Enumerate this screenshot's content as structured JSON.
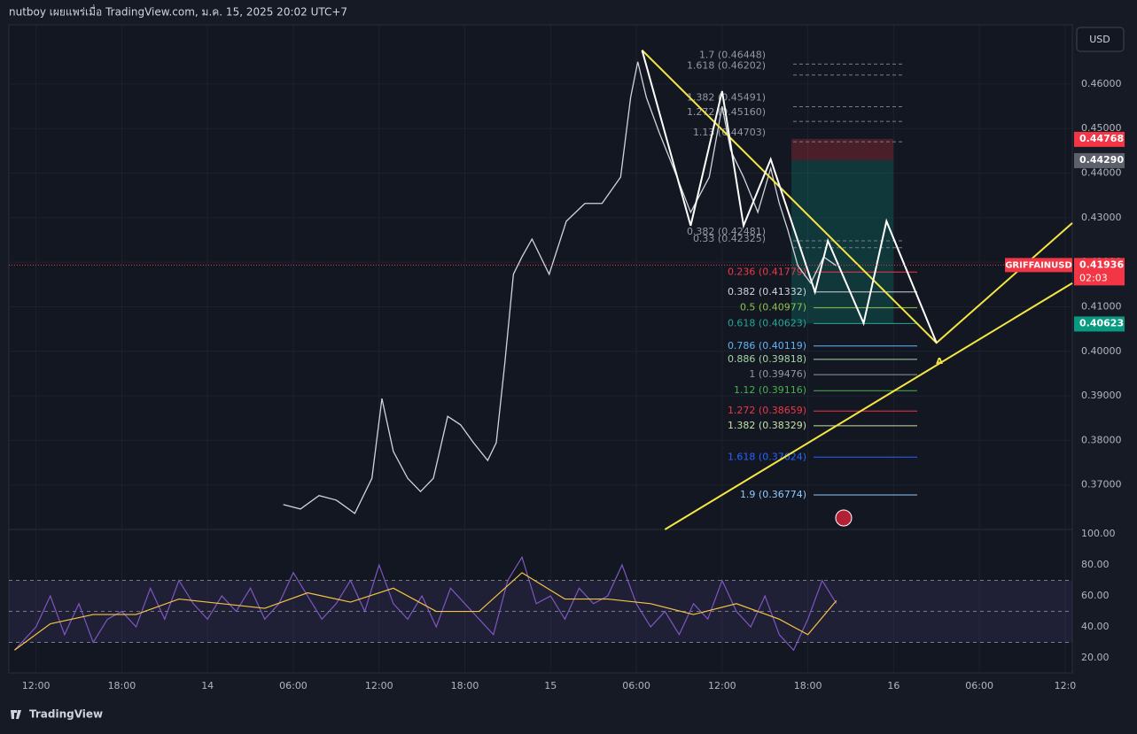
{
  "header": {
    "text": "nutboy เผยแพร่เมื่อ TradingView.com, ม.ค. 15, 2025 20:02 UTC+7"
  },
  "currency_button": "USD",
  "footer": "TradingView",
  "chart_data": [
    {
      "type": "line",
      "xlim": [
        -1.9,
        72.5
      ],
      "xticks": [
        {
          "value": 0,
          "label": "12:00"
        },
        {
          "value": 6,
          "label": "18:00"
        },
        {
          "value": 12,
          "label": "14"
        },
        {
          "value": 18,
          "label": "06:00"
        },
        {
          "value": 24,
          "label": "12:00"
        },
        {
          "value": 30,
          "label": "18:00"
        },
        {
          "value": 36,
          "label": "15"
        },
        {
          "value": 42,
          "label": "06:00"
        },
        {
          "value": 48,
          "label": "12:00"
        },
        {
          "value": 54,
          "label": "18:00"
        },
        {
          "value": 60,
          "label": "16"
        },
        {
          "value": 66,
          "label": "06:00"
        },
        {
          "value": 72,
          "label": "12:0"
        }
      ],
      "ylim": [
        0.36,
        0.4733
      ],
      "yticks": [
        {
          "value": 0.37,
          "label": "0.37000"
        },
        {
          "value": 0.38,
          "label": "0.38000"
        },
        {
          "value": 0.39,
          "label": "0.39000"
        },
        {
          "value": 0.4,
          "label": "0.40000"
        },
        {
          "value": 0.41,
          "label": "0.41000"
        },
        {
          "value": 0.42,
          "label": "0.42000"
        },
        {
          "value": 0.43,
          "label": "0.43000"
        },
        {
          "value": 0.44,
          "label": "0.44000"
        },
        {
          "value": 0.45,
          "label": "0.45000"
        },
        {
          "value": 0.46,
          "label": "0.46000"
        }
      ],
      "series": [
        {
          "color": "#d1d4dc",
          "x": [
            17.3,
            18.5,
            19.8,
            21.0,
            22.3,
            23.5,
            24.2,
            25.0,
            26.0,
            26.9,
            27.8,
            28.8,
            29.7,
            30.6,
            31.6,
            32.2,
            32.8,
            33.4,
            34.0,
            34.7,
            35.9,
            37.1,
            38.4,
            39.6,
            40.9,
            41.6,
            42.1,
            42.7,
            43.6,
            44.6,
            45.8,
            47.1,
            48.0,
            48.6,
            49.5,
            50.5,
            51.4,
            52.0,
            52.6,
            53.3,
            54.2,
            55.1,
            56.0
          ],
          "values": [
            0.3656,
            0.3646,
            0.3676,
            0.3666,
            0.3636,
            0.3715,
            0.3894,
            0.3775,
            0.3715,
            0.3685,
            0.3715,
            0.3854,
            0.3835,
            0.3795,
            0.3755,
            0.3795,
            0.3974,
            0.4173,
            0.4212,
            0.4252,
            0.4173,
            0.4292,
            0.4332,
            0.4332,
            0.4391,
            0.457,
            0.465,
            0.457,
            0.4491,
            0.4411,
            0.4312,
            0.4391,
            0.455,
            0.4451,
            0.4391,
            0.4312,
            0.4411,
            0.4332,
            0.4272,
            0.4192,
            0.4153,
            0.4212,
            0.4192
          ]
        }
      ],
      "drawings": [
        {
          "color": "#f5e642",
          "x": [
            42.4,
            63.0,
            72.5
          ],
          "values": [
            0.4676,
            0.4019,
            0.4288
          ]
        },
        {
          "color": "#f5e642",
          "x": [
            44.0,
            72.5
          ],
          "values": [
            0.36,
            0.4153
          ]
        },
        {
          "color": "#ffffff",
          "x": [
            42.4,
            45.8,
            48.0,
            49.5,
            51.4,
            54.5,
            55.4,
            57.9,
            59.5,
            63.0
          ],
          "values": [
            0.4676,
            0.4282,
            0.4584,
            0.4282,
            0.4431,
            0.4133,
            0.4248,
            0.4063,
            0.4292,
            0.4019
          ]
        }
      ],
      "annotations": [
        {
          "text": "A",
          "x": 63.2,
          "value": 0.3978
        }
      ],
      "fib_upper": [
        {
          "label": "1.7 (0.46448)",
          "value": 0.46448
        },
        {
          "label": "1.618 (0.46202)",
          "value": 0.46202
        },
        {
          "label": "1.382 (0.45491)",
          "value": 0.45491
        },
        {
          "label": "1.272 (0.45160)",
          "value": 0.4516
        },
        {
          "label": "1.13 (0.44703)",
          "value": 0.44703
        },
        {
          "label": "0.382 (0.42481)",
          "value": 0.42481
        },
        {
          "label": "0.33 (0.42325)",
          "value": 0.42325
        }
      ],
      "fib_lower": [
        {
          "label": "0.236 (0.41779)",
          "value": 0.41779,
          "color": "#f23645"
        },
        {
          "label": "0.382 (0.41332)",
          "value": 0.41332,
          "color": "#d1d4dc"
        },
        {
          "label": "0.5 (0.40977)",
          "value": 0.40977,
          "color": "#8bc34a"
        },
        {
          "label": "0.618 (0.40623)",
          "value": 0.40623,
          "color": "#26a69a"
        },
        {
          "label": "0.786 (0.40119)",
          "value": 0.40119,
          "color": "#64b5f6"
        },
        {
          "label": "0.886 (0.39818)",
          "value": 0.39818,
          "color": "#a5d6a7"
        },
        {
          "label": "1 (0.39476)",
          "value": 0.39476,
          "color": "#9598a1"
        },
        {
          "label": "1.12 (0.39116)",
          "value": 0.39116,
          "color": "#4caf50"
        },
        {
          "label": "1.272 (0.38659)",
          "value": 0.38659,
          "color": "#f23645"
        },
        {
          "label": "1.382 (0.38329)",
          "value": 0.38329,
          "color": "#c5e1a5"
        },
        {
          "label": "1.618 (0.37624)",
          "value": 0.37624,
          "color": "#2962ff"
        },
        {
          "label": "1.9 (0.36774)",
          "value": 0.36774,
          "color": "#90caf9"
        }
      ],
      "price_labels": [
        {
          "label": "0.44768",
          "value": 0.44768,
          "color": "#f23645"
        },
        {
          "label": "0.44290",
          "value": 0.4429,
          "color": "#5d606b"
        },
        {
          "label": "0.41936",
          "value": 0.41936,
          "color": "#f23645",
          "symbol": "GRIFFAINUSD",
          "countdown": "02:03"
        },
        {
          "label": "0.40623",
          "value": 0.40623,
          "color": "#089981"
        }
      ]
    },
    {
      "type": "line",
      "xlim": [
        -1.9,
        72.5
      ],
      "ylim": [
        10.3,
        102.9
      ],
      "yticks": [
        {
          "value": 20,
          "label": "20.00"
        },
        {
          "value": 40,
          "label": "40.00"
        },
        {
          "value": 60,
          "label": "60.00"
        },
        {
          "value": 80,
          "label": "80.00"
        },
        {
          "value": 100,
          "label": "100.00"
        }
      ],
      "bands": [
        30,
        50,
        70
      ],
      "series": [
        {
          "color": "#7e57c2",
          "x": [
            -1.5,
            0,
            1,
            2,
            3,
            4,
            5,
            6,
            7,
            8,
            9,
            10,
            11,
            12,
            13,
            14,
            15,
            16,
            17,
            18,
            19,
            20,
            21,
            22,
            23,
            24,
            25,
            26,
            27,
            28,
            29,
            30,
            31,
            32,
            33,
            34,
            35,
            36,
            37,
            38,
            39,
            40,
            41,
            42,
            43,
            44,
            45,
            46,
            47,
            48,
            49,
            50,
            51,
            52,
            53,
            54,
            55,
            56
          ],
          "values": [
            25,
            40,
            60,
            35,
            55,
            30,
            45,
            50,
            40,
            65,
            45,
            70,
            55,
            45,
            60,
            50,
            65,
            45,
            55,
            75,
            60,
            45,
            55,
            70,
            50,
            80,
            55,
            45,
            60,
            40,
            65,
            55,
            45,
            35,
            70,
            85,
            55,
            60,
            45,
            65,
            55,
            60,
            80,
            55,
            40,
            50,
            35,
            55,
            45,
            70,
            50,
            40,
            60,
            35,
            25,
            45,
            70,
            55
          ]
        },
        {
          "color": "#f5c542",
          "x": [
            -1.5,
            1,
            4,
            7,
            10,
            13,
            16,
            19,
            22,
            25,
            28,
            31,
            34,
            37,
            40,
            43,
            46,
            49,
            52,
            54,
            56
          ],
          "values": [
            25,
            42,
            48,
            48,
            58,
            55,
            52,
            62,
            56,
            65,
            50,
            50,
            75,
            58,
            58,
            55,
            48,
            55,
            45,
            35,
            57
          ]
        }
      ]
    }
  ]
}
